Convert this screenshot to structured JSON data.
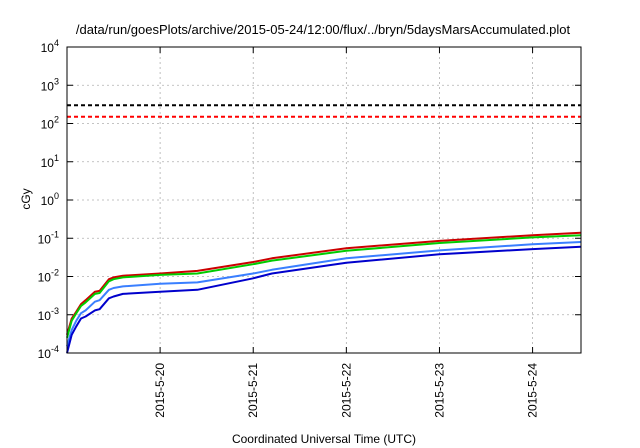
{
  "chart_data": {
    "type": "line",
    "title": "/data/run/goesPlots/archive/2015-05-24/12:00/flux/../bryn/5daysMarsAccumulated.plot",
    "xlabel": "Coordinated Universal Time (UTC)",
    "ylabel": "cGy",
    "y_scale": "log",
    "ylim": [
      0.0001,
      10000
    ],
    "xlim": [
      0,
      5.52
    ],
    "grid": true,
    "x_ticks": [
      {
        "x": 1,
        "label": "2015-5-20"
      },
      {
        "x": 2,
        "label": "2015-5-21"
      },
      {
        "x": 3,
        "label": "2015-5-22"
      },
      {
        "x": 4,
        "label": "2015-5-23"
      },
      {
        "x": 5,
        "label": "2015-5-24"
      }
    ],
    "y_ticks": [
      {
        "y": 0.0001,
        "base": "10",
        "exp": "-4"
      },
      {
        "y": 0.001,
        "base": "10",
        "exp": "-3"
      },
      {
        "y": 0.01,
        "base": "10",
        "exp": "-2"
      },
      {
        "y": 0.1,
        "base": "10",
        "exp": "-1"
      },
      {
        "y": 1,
        "base": "10",
        "exp": "0"
      },
      {
        "y": 10,
        "base": "10",
        "exp": "1"
      },
      {
        "y": 100,
        "base": "10",
        "exp": "2"
      },
      {
        "y": 1000,
        "base": "10",
        "exp": "3"
      },
      {
        "y": 10000,
        "base": "10",
        "exp": "4"
      }
    ],
    "reference_lines": [
      {
        "y": 300,
        "color": "#000000",
        "dash": true
      },
      {
        "y": 150,
        "color": "#ff0000",
        "dash": true
      }
    ],
    "series": [
      {
        "color": "#cc0000",
        "x": [
          0,
          0.05,
          0.1,
          0.15,
          0.2,
          0.3,
          0.35,
          0.45,
          0.5,
          0.6,
          1.0,
          1.4,
          2.0,
          2.2,
          3.0,
          4.0,
          5.0,
          5.52
        ],
        "y": [
          0.0003,
          0.0008,
          0.0012,
          0.0019,
          0.0024,
          0.004,
          0.0042,
          0.0085,
          0.0095,
          0.0105,
          0.012,
          0.014,
          0.024,
          0.03,
          0.055,
          0.085,
          0.12,
          0.14
        ]
      },
      {
        "color": "#00cc00",
        "x": [
          0,
          0.05,
          0.1,
          0.15,
          0.2,
          0.3,
          0.35,
          0.45,
          0.5,
          0.6,
          1.0,
          1.4,
          2.0,
          2.2,
          3.0,
          4.0,
          5.0,
          5.52
        ],
        "y": [
          0.00025,
          0.0007,
          0.0011,
          0.0017,
          0.0021,
          0.0035,
          0.0037,
          0.0075,
          0.0085,
          0.0095,
          0.011,
          0.012,
          0.021,
          0.026,
          0.047,
          0.075,
          0.105,
          0.12
        ]
      },
      {
        "color": "#3a7fff",
        "x": [
          0,
          0.05,
          0.1,
          0.15,
          0.2,
          0.3,
          0.35,
          0.45,
          0.5,
          0.6,
          1.0,
          1.4,
          2.0,
          2.2,
          3.0,
          4.0,
          5.0,
          5.52
        ],
        "y": [
          0.00015,
          0.0004,
          0.0007,
          0.0011,
          0.0013,
          0.0022,
          0.0024,
          0.0045,
          0.005,
          0.0055,
          0.0065,
          0.007,
          0.012,
          0.015,
          0.03,
          0.048,
          0.07,
          0.08
        ]
      },
      {
        "color": "#0000cc",
        "x": [
          0,
          0.05,
          0.1,
          0.15,
          0.2,
          0.3,
          0.35,
          0.45,
          0.5,
          0.6,
          1.0,
          1.4,
          2.0,
          2.2,
          3.0,
          4.0,
          5.0,
          5.52
        ],
        "y": [
          0.0001,
          0.0003,
          0.0005,
          0.0008,
          0.0009,
          0.0013,
          0.0014,
          0.0027,
          0.003,
          0.0035,
          0.004,
          0.0045,
          0.009,
          0.012,
          0.023,
          0.038,
          0.052,
          0.06
        ]
      }
    ]
  }
}
